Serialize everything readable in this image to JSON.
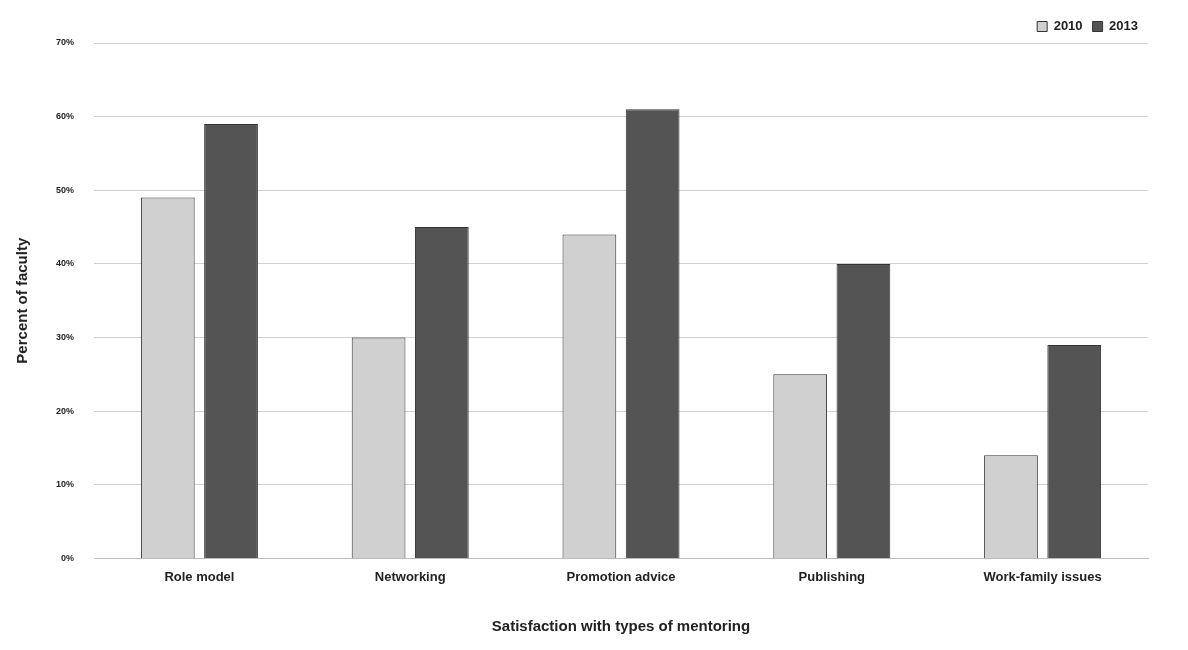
{
  "chart_data": {
    "type": "bar",
    "xlabel": "Satisfaction with types of mentoring",
    "ylabel": "Percent of faculty",
    "categories": [
      "Role model",
      "Networking",
      "Promotion advice",
      "Publishing",
      "Work-family issues"
    ],
    "series": [
      {
        "name": "2010",
        "color": "#d0d0d0",
        "values": [
          49,
          30,
          44,
          25,
          14
        ]
      },
      {
        "name": "2013",
        "color": "#545454",
        "values": [
          59,
          45,
          61,
          40,
          29
        ]
      }
    ],
    "ylim": [
      0,
      70
    ],
    "yticks": [
      {
        "value": 0,
        "label": "0%"
      },
      {
        "value": 10,
        "label": "10%"
      },
      {
        "value": 20,
        "label": "20%"
      },
      {
        "value": 30,
        "label": "30%"
      },
      {
        "value": 40,
        "label": "40%"
      },
      {
        "value": 50,
        "label": "50%"
      },
      {
        "value": 60,
        "label": "60%"
      },
      {
        "value": 70,
        "label": "70%"
      }
    ],
    "grid": "y",
    "legend": "top right"
  }
}
